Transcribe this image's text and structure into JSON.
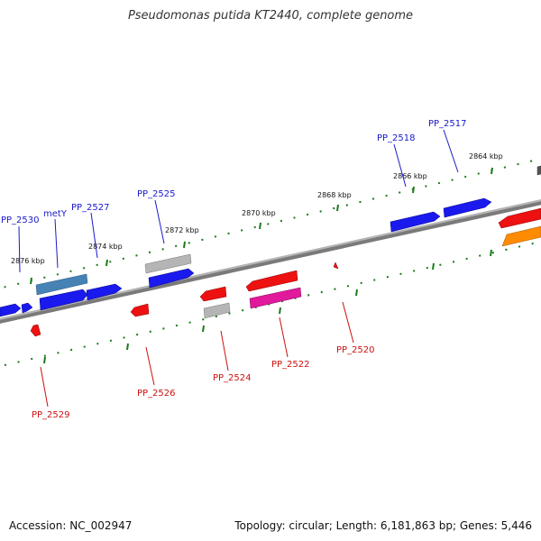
{
  "title": "Pseudomonas putida KT2440, complete genome",
  "accession": "Accession: NC_002947",
  "summary": "Topology: circular; Length: 6,181,863 bp; Genes: 5,446",
  "colors": {
    "backbone": "#8a8a8a",
    "tick": "#1a7a1a",
    "forward_label": "#1a1acc",
    "reverse_label": "#cc1111",
    "blue": "#1a1aee",
    "steelblue": "#4682b4",
    "red": "#ee1111",
    "magenta": "#e01a9a",
    "gray": "#aaaaaa",
    "orange": "#ff8c00"
  },
  "tick_labels": [
    "2864 kbp",
    "2866 kbp",
    "2868 kbp",
    "2870 kbp",
    "2872 kbp",
    "2874 kbp",
    "2876 kbp"
  ],
  "forward_labels": [
    "PP_2517",
    "PP_2518",
    "PP_2525",
    "PP_2527",
    "metY",
    "PP_2530"
  ],
  "reverse_labels": [
    "PP_2520",
    "PP_2522",
    "PP_2524",
    "PP_2526",
    "PP_2529"
  ]
}
